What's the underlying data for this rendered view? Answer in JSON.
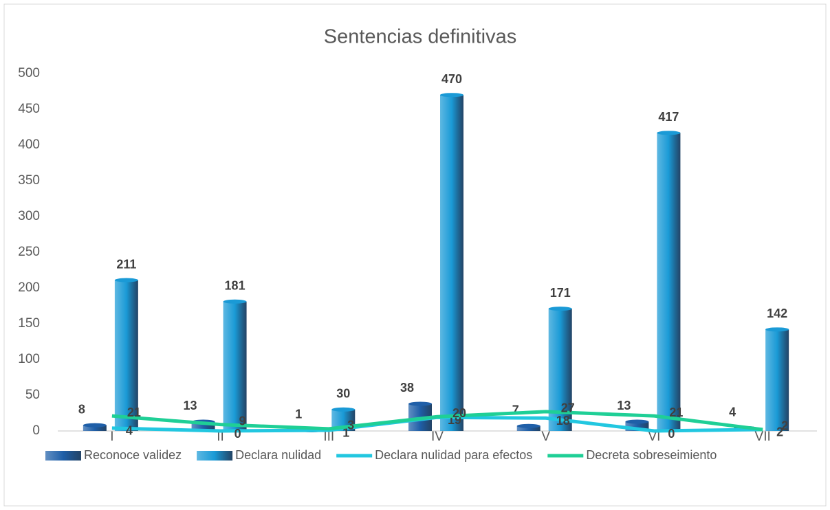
{
  "chart_data": {
    "type": "bar",
    "title": "Sentencias definitivas",
    "categories": [
      "I",
      "II",
      "III",
      "IV",
      "V",
      "VI",
      "VII"
    ],
    "ylim": [
      0,
      500
    ],
    "yticks": [
      0,
      50,
      100,
      150,
      200,
      250,
      300,
      350,
      400,
      450,
      500
    ],
    "series": [
      {
        "name": "Reconoce validez",
        "type": "bar",
        "color": "#1f5fa8",
        "values": [
          8,
          13,
          1,
          38,
          7,
          13,
          4
        ]
      },
      {
        "name": "Declara nulidad",
        "type": "bar",
        "color": "#1a9ad6",
        "values": [
          211,
          181,
          30,
          470,
          171,
          417,
          142
        ]
      },
      {
        "name": "Declara nulidad para efectos",
        "type": "line",
        "color": "#22c7e0",
        "values": [
          4,
          0,
          1,
          19,
          18,
          0,
          2
        ]
      },
      {
        "name": "Decreta sobreseimiento",
        "type": "line",
        "color": "#1fcf96",
        "values": [
          21,
          9,
          3,
          20,
          27,
          21,
          2
        ]
      }
    ]
  }
}
